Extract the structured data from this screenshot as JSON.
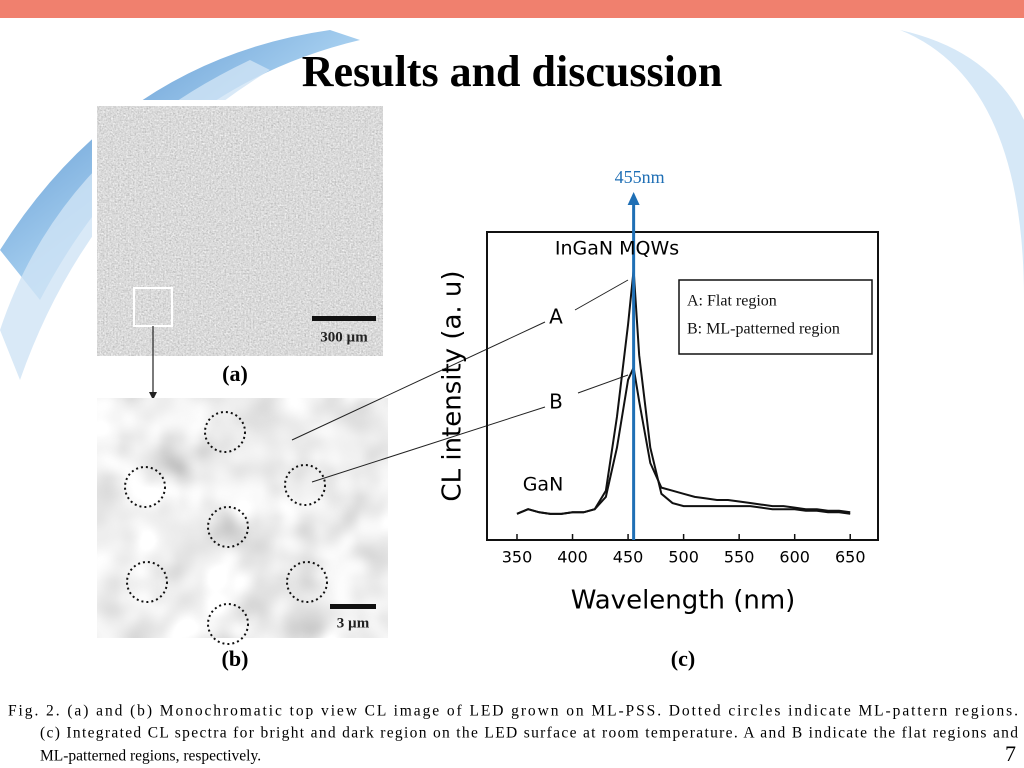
{
  "title": "Results and discussion",
  "page_number": "7",
  "figure": {
    "panel_a": {
      "label": "(a)",
      "scale_bar": "300 µm"
    },
    "panel_b": {
      "label": "(b)",
      "scale_bar": "3 µm"
    },
    "panel_c": {
      "label": "(c)"
    }
  },
  "caption": {
    "lines": [
      "Fig. 2.   (a) and (b) Monochromatic top view CL image of LED grown on ML-PSS. Dotted circles indicate ML-pattern regions.",
      "(c) Integrated CL spectra for bright and dark region on the LED surface at room temperature. A and B indicate the flat regions and",
      "ML-patterned regions, respectively."
    ]
  },
  "chart_data": {
    "type": "line",
    "x_label": "Wavelength (nm)",
    "y_label": "CL intensity (a. u)",
    "xlim": [
      323,
      675
    ],
    "xticks": [
      350,
      400,
      450,
      500,
      550,
      600,
      650
    ],
    "ylim": [
      0,
      1
    ],
    "legend": "upper right",
    "x": [
      350,
      360,
      370,
      380,
      390,
      400,
      410,
      420,
      430,
      440,
      450,
      455,
      460,
      470,
      480,
      490,
      500,
      510,
      520,
      530,
      540,
      550,
      560,
      570,
      580,
      590,
      600,
      610,
      620,
      630,
      640,
      650
    ],
    "series": [
      {
        "name": "A: Flat region",
        "color": "#111111",
        "values": [
          0.085,
          0.1,
          0.09,
          0.085,
          0.085,
          0.09,
          0.09,
          0.1,
          0.16,
          0.4,
          0.7,
          0.877,
          0.6,
          0.3,
          0.15,
          0.12,
          0.11,
          0.11,
          0.11,
          0.11,
          0.11,
          0.11,
          0.11,
          0.105,
          0.1,
          0.1,
          0.1,
          0.095,
          0.095,
          0.09,
          0.09,
          0.085
        ]
      },
      {
        "name": "B: ML-patterned region",
        "color": "#111111",
        "values": [
          0.085,
          0.1,
          0.09,
          0.085,
          0.085,
          0.09,
          0.09,
          0.1,
          0.14,
          0.3,
          0.52,
          0.56,
          0.45,
          0.25,
          0.17,
          0.16,
          0.15,
          0.14,
          0.135,
          0.13,
          0.13,
          0.125,
          0.12,
          0.115,
          0.11,
          0.11,
          0.105,
          0.1,
          0.1,
          0.095,
          0.095,
          0.09
        ]
      }
    ],
    "annotations": [
      {
        "text": "455nm",
        "x": 455,
        "color": "#1f6fb5"
      },
      {
        "text": "InGaN MQWs"
      },
      {
        "text": "A"
      },
      {
        "text": "B"
      },
      {
        "text": "GaN"
      }
    ]
  }
}
